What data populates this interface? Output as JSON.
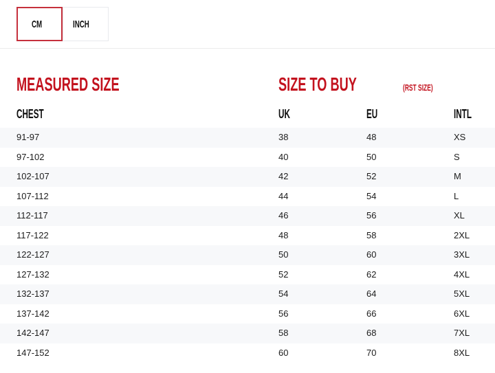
{
  "unit_tabs": {
    "cm": "CM",
    "inch": "INCH",
    "selected": "CM"
  },
  "section_headers": {
    "measured": "MEASURED SIZE",
    "size_to_buy": "SIZE TO BUY",
    "size_to_buy_note": "(RST SIZE)"
  },
  "table": {
    "columns": [
      "CHEST",
      "UK",
      "EU",
      "INTL"
    ],
    "rows": [
      [
        "91-97",
        "38",
        "48",
        "XS"
      ],
      [
        "97-102",
        "40",
        "50",
        "S"
      ],
      [
        "102-107",
        "42",
        "52",
        "M"
      ],
      [
        "107-112",
        "44",
        "54",
        "L"
      ],
      [
        "112-117",
        "46",
        "56",
        "XL"
      ],
      [
        "117-122",
        "48",
        "58",
        "2XL"
      ],
      [
        "122-127",
        "50",
        "60",
        "3XL"
      ],
      [
        "127-132",
        "52",
        "62",
        "4XL"
      ],
      [
        "132-137",
        "54",
        "64",
        "5XL"
      ],
      [
        "137-142",
        "56",
        "66",
        "6XL"
      ],
      [
        "142-147",
        "58",
        "68",
        "7XL"
      ],
      [
        "147-152",
        "60",
        "70",
        "8XL"
      ]
    ]
  },
  "colors": {
    "accent_red": "#c3121e",
    "active_tab_border": "#c5303c",
    "row_alt_bg": "#f7f8fa",
    "inactive_tab_border": "#e8eaed",
    "divider": "#ececec"
  }
}
